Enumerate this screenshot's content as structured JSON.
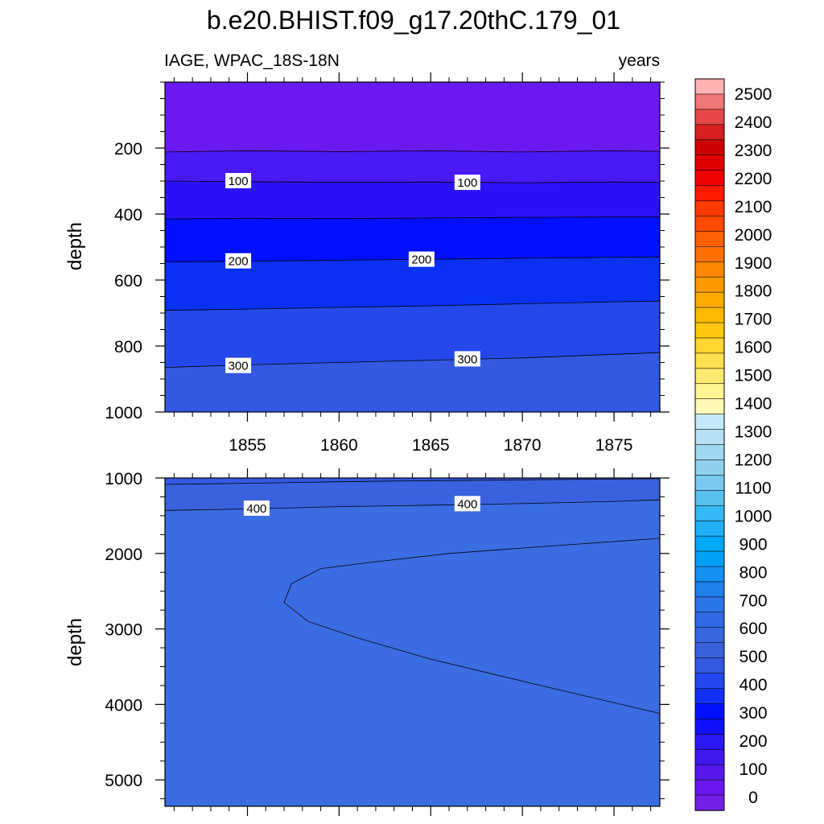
{
  "chart_data": {
    "type": "heatmap",
    "title": "b.e20.BHIST.f09_g17.20thC.179_01",
    "left_string": "IAGE, WPAC_18S-18N",
    "right_string": "years",
    "x_tick_labels": [
      "1855",
      "1860",
      "1865",
      "1870",
      "1875"
    ],
    "x_ticks": [
      1855,
      1860,
      1865,
      1870,
      1875
    ],
    "xlim": [
      1850.5,
      1877.5
    ],
    "panels": [
      {
        "name": "upper",
        "ylabel": "depth",
        "ylim": [
          0,
          1000
        ],
        "y_reversed": true,
        "y_tick_labels": [
          "200",
          "400",
          "600",
          "800",
          "1000"
        ],
        "y_ticks": [
          200,
          400,
          600,
          800,
          1000
        ],
        "contour_lines": [
          {
            "level": 50,
            "x": [
              1850.5,
              1855,
              1860,
              1865,
              1870,
              1875,
              1877.5
            ],
            "depth": [
              212,
              208,
              211,
              208,
              212,
              208,
              210
            ]
          },
          {
            "level": 100,
            "x": [
              1850.5,
              1855,
              1860,
              1865,
              1870,
              1875,
              1877.5
            ],
            "depth": [
              300,
              302,
              304,
              303,
              305,
              303,
              304
            ]
          },
          {
            "level": 150,
            "x": [
              1850.5,
              1855,
              1860,
              1865,
              1870,
              1875,
              1877.5
            ],
            "depth": [
              415,
              413,
              414,
              412,
              410,
              409,
              409
            ]
          },
          {
            "level": 200,
            "x": [
              1850.5,
              1855,
              1860,
              1865,
              1870,
              1875,
              1877.5
            ],
            "depth": [
              545,
              543,
              540,
              537,
              534,
              531,
              530
            ]
          },
          {
            "level": 250,
            "x": [
              1850.5,
              1855,
              1860,
              1865,
              1870,
              1875,
              1877.5
            ],
            "depth": [
              692,
              688,
              683,
              678,
              672,
              666,
              664
            ]
          },
          {
            "level": 300,
            "x": [
              1850.5,
              1855,
              1860,
              1865,
              1870,
              1875,
              1877.5
            ],
            "depth": [
              865,
              857,
              850,
              843,
              836,
              825,
              820
            ]
          }
        ],
        "contour_labels": [
          {
            "text": "100",
            "x": 1854.5,
            "depth": 300
          },
          {
            "text": "100",
            "x": 1867.0,
            "depth": 305
          },
          {
            "text": "200",
            "x": 1854.5,
            "depth": 543
          },
          {
            "text": "200",
            "x": 1864.5,
            "depth": 538
          },
          {
            "text": "300",
            "x": 1854.5,
            "depth": 860
          },
          {
            "text": "300",
            "x": 1867.0,
            "depth": 840
          }
        ]
      },
      {
        "name": "lower",
        "ylabel": "depth",
        "ylim": [
          1000,
          5350
        ],
        "y_reversed": true,
        "y_tick_labels": [
          "1000",
          "2000",
          "3000",
          "4000",
          "5000"
        ],
        "y_ticks": [
          1000,
          2000,
          3000,
          4000,
          5000
        ],
        "contour_lines": [
          {
            "level": 350,
            "x": [
              1850.5,
              1855,
              1860,
              1865,
              1870,
              1875,
              1877.5
            ],
            "depth": [
              1085,
              1070,
              1050,
              1035,
              1025,
              1015,
              1010
            ]
          },
          {
            "level": 400,
            "x": [
              1850.5,
              1855,
              1860,
              1865,
              1870,
              1875,
              1877.5
            ],
            "depth": [
              1430,
              1410,
              1380,
              1360,
              1340,
              1310,
              1290
            ]
          }
        ],
        "closed_contours": [
          {
            "level": 450,
            "x": [
              1877.5,
              1871,
              1866,
              1862,
              1859,
              1857.4,
              1857,
              1858.3,
              1861,
              1865,
              1871,
              1877.5
            ],
            "depth": [
              1800,
              1910,
              2000,
              2110,
              2200,
              2400,
              2650,
              2900,
              3120,
              3400,
              3750,
              4120
            ]
          }
        ],
        "contour_labels": [
          {
            "text": "400",
            "x": 1855.5,
            "depth": 1405
          },
          {
            "text": "400",
            "x": 1867.0,
            "depth": 1345
          }
        ]
      }
    ],
    "colorbar": {
      "labels": [
        "2500",
        "2400",
        "2300",
        "2200",
        "2100",
        "2000",
        "1900",
        "1800",
        "1700",
        "1600",
        "1500",
        "1400",
        "1300",
        "1200",
        "1100",
        "1000",
        "900",
        "800",
        "700",
        "600",
        "500",
        "400",
        "300",
        "200",
        "100",
        "0"
      ],
      "colors_top_to_bottom": [
        "#ffb3b3",
        "#f07878",
        "#e54848",
        "#d62020",
        "#cc0000",
        "#e00000",
        "#ee0000",
        "#ff1a00",
        "#ff3a00",
        "#ff4a00",
        "#ff6000",
        "#ff7000",
        "#ff8800",
        "#ff9900",
        "#ffaa00",
        "#ffbb00",
        "#ffc810",
        "#ffd530",
        "#ffe050",
        "#ffe870",
        "#fff490",
        "#fffab8",
        "#c5e8f8",
        "#b8e0f2",
        "#a0d8f0",
        "#90d0ee",
        "#78c8f0",
        "#5ac0f0",
        "#35b8f4",
        "#20b0f8",
        "#00a8f8",
        "#00a0f8",
        "#1390f0",
        "#2080ec",
        "#2a75e8",
        "#306ae6",
        "#3868e0",
        "#3a60dc",
        "#3458e0",
        "#2448f0",
        "#1030f8",
        "#0010ff",
        "#1010f8",
        "#2a18f4",
        "#4018ee",
        "#5818ec",
        "#6818ee",
        "#7520e8"
      ]
    }
  }
}
